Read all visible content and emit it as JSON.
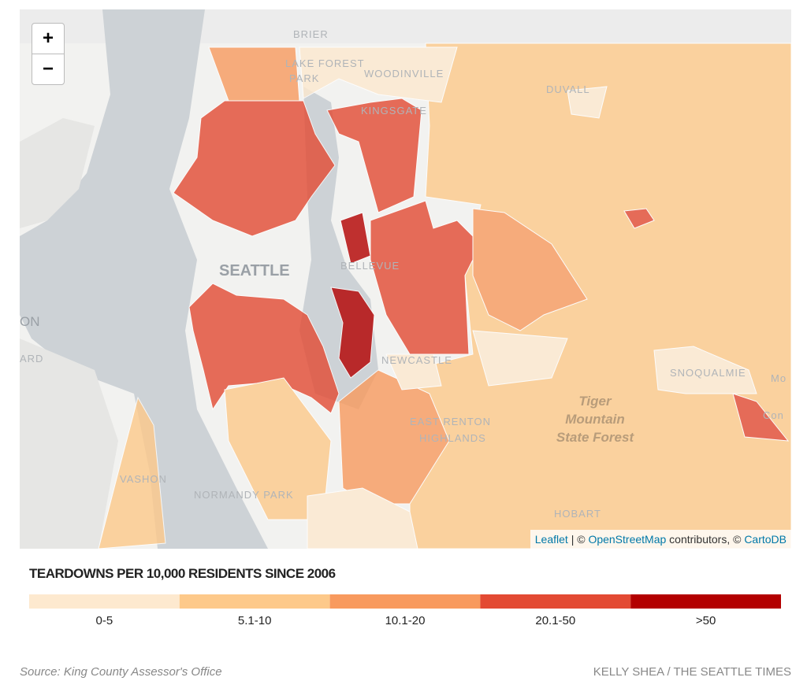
{
  "zoom": {
    "in": "+",
    "out": "−"
  },
  "map_labels": [
    "BRIER",
    "LAKE FOREST",
    "PARK",
    "WOODINVILLE",
    "DUVALL",
    "KINGSGATE",
    "SEATTLE",
    "BELLEVUE",
    "NEWCASTLE",
    "EAST RENTON",
    "HIGHLANDS",
    "SNOQUALMIE",
    "Tiger",
    "Mountain",
    "State Forest",
    "VASHON",
    "NORMANDY PARK",
    "HOBART",
    "ON",
    "ARD",
    "Mo",
    "Con"
  ],
  "attribution": {
    "leaflet": "Leaflet",
    "sep": "| ©",
    "osm": "OpenStreetMap",
    "contrib": "contributors, ©",
    "carto": "CartoDB"
  },
  "legend": {
    "title": "TEARDOWNS PER 10,000 RESIDENTS SINCE 2006",
    "items": [
      {
        "label": "0-5",
        "color": "#fde9cf"
      },
      {
        "label": "5.1-10",
        "color": "#fdc98a"
      },
      {
        "label": "10.1-20",
        "color": "#f89a5e"
      },
      {
        "label": "20.1-50",
        "color": "#e34a33"
      },
      {
        "label": ">50",
        "color": "#b30000"
      }
    ]
  },
  "footer": {
    "source": "Source: King County Assessor's Office",
    "credit": "KELLY SHEA / THE SEATTLE TIMES"
  }
}
